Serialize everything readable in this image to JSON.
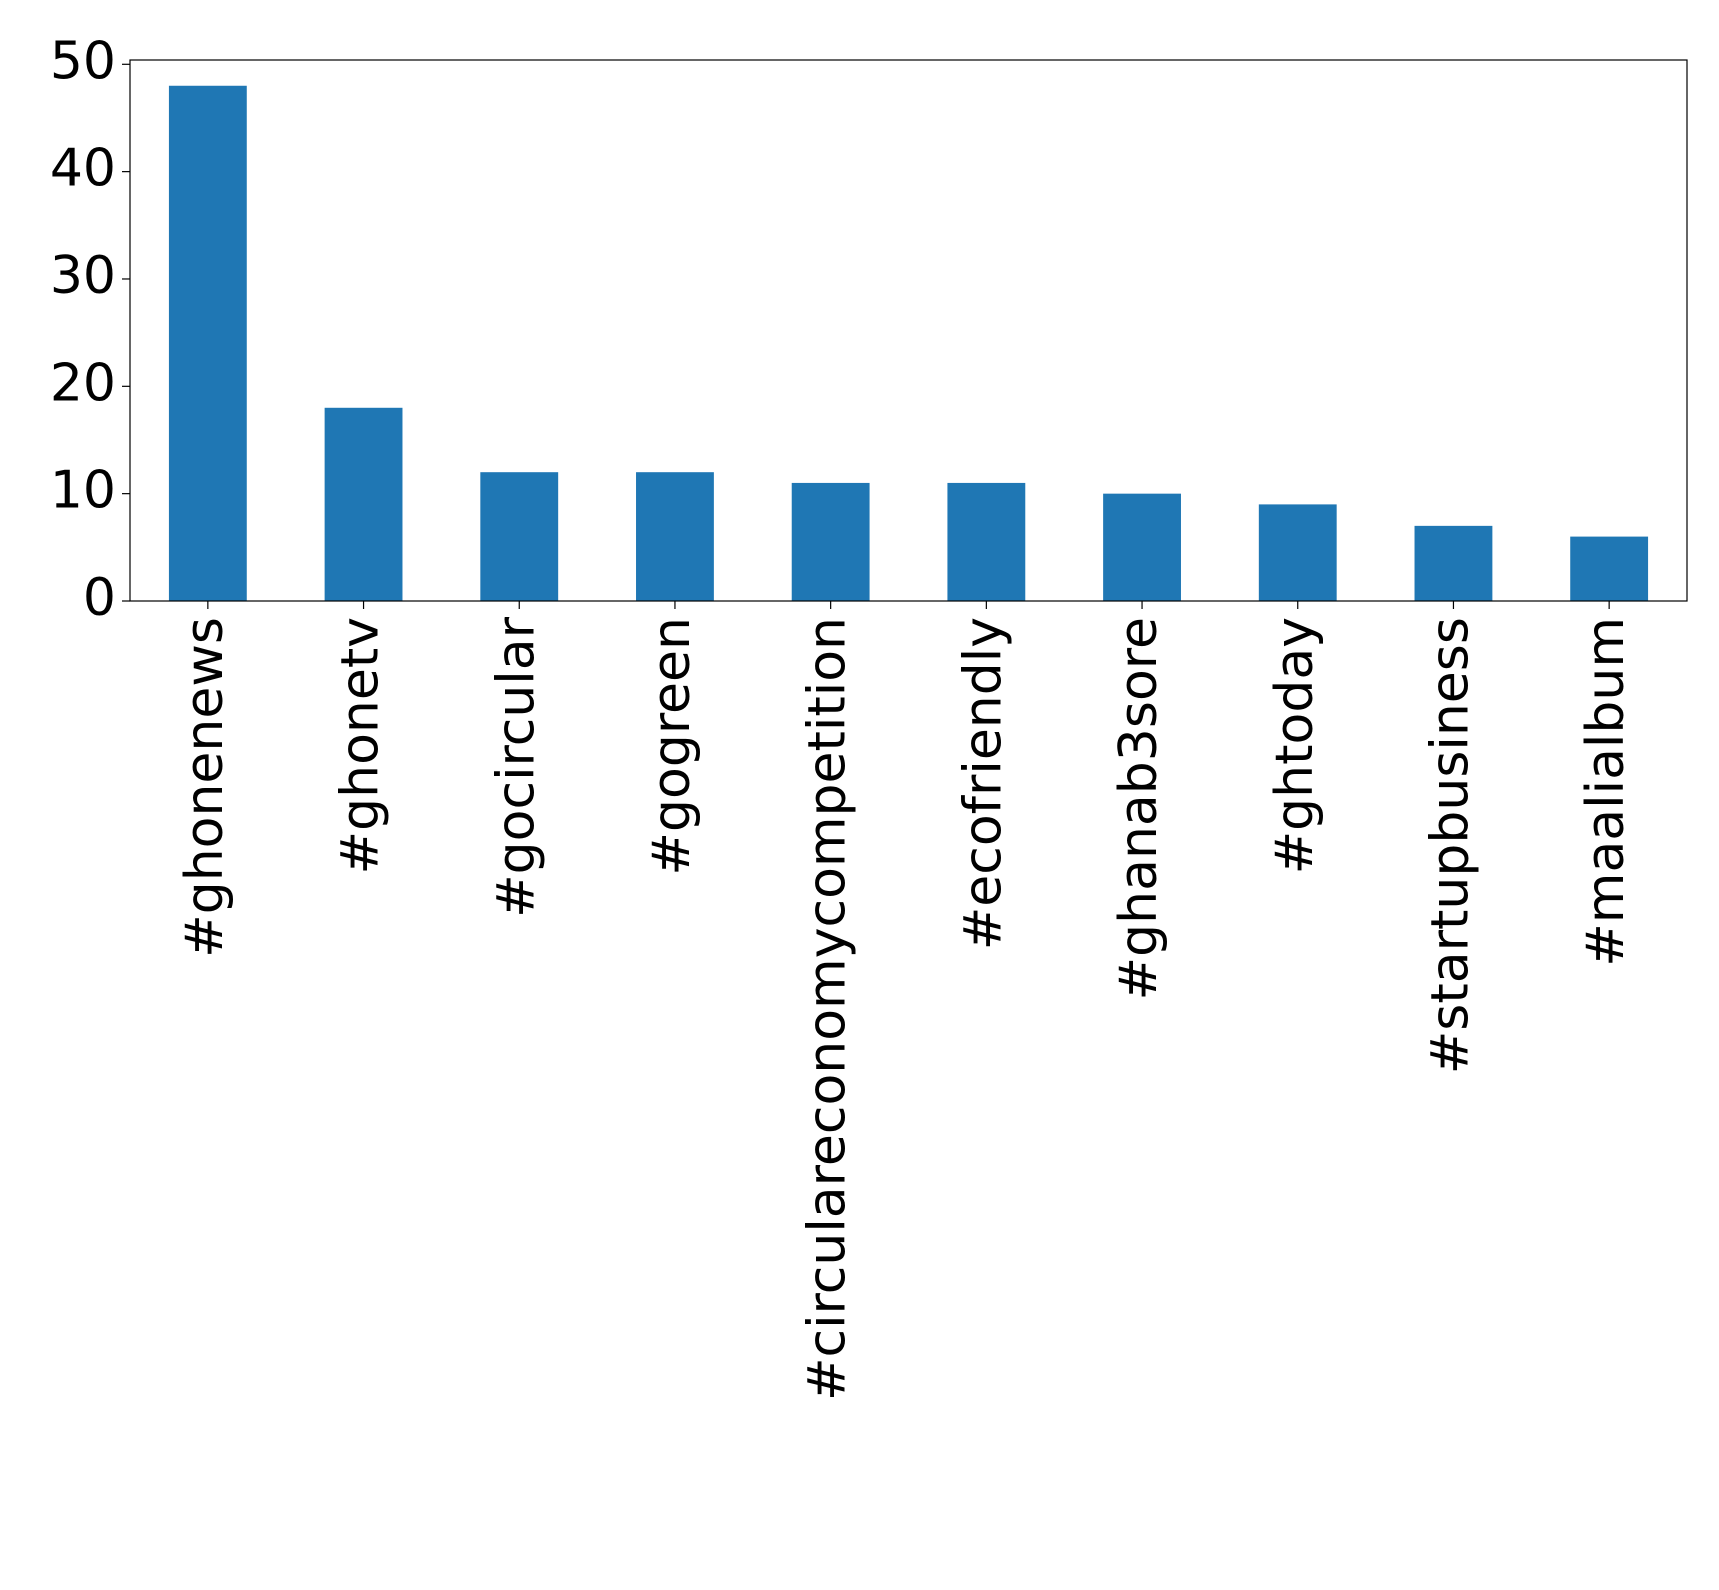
{
  "chart_data": {
    "type": "bar",
    "categories": [
      "#ghonenews",
      "#ghonetv",
      "#gocircular",
      "#gogreen",
      "#circulareconomycompetition",
      "#ecofriendly",
      "#ghanab3sore",
      "#ghtoday",
      "#startupbusiness",
      "#maalialbum"
    ],
    "values": [
      48,
      18,
      12,
      12,
      11,
      11,
      10,
      9,
      7,
      6
    ],
    "color": "#1f77b4",
    "ylim": [
      0,
      50.4
    ],
    "yticks": [
      0,
      10,
      20,
      30,
      40,
      50
    ],
    "grid": false
  }
}
